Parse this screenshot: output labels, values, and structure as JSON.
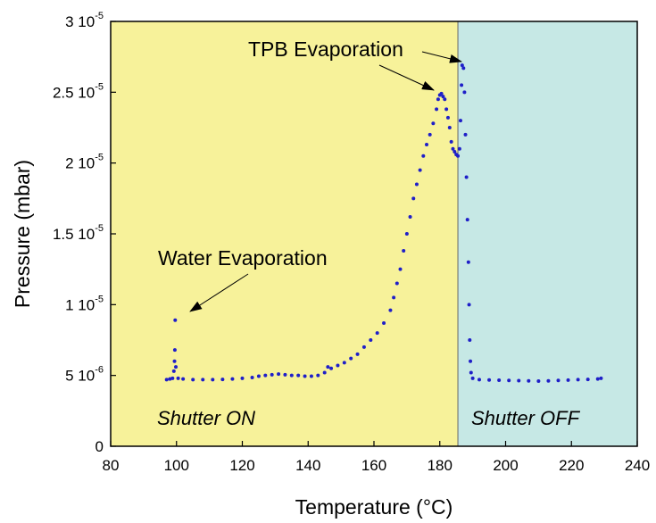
{
  "chart_data": {
    "type": "scatter",
    "xlabel": "Temperature (°C)",
    "ylabel": "Pressure (mbar)",
    "xlim": [
      80,
      240
    ],
    "ylim": [
      0,
      3e-05
    ],
    "x_ticks": [
      80,
      100,
      120,
      140,
      160,
      180,
      200,
      220,
      240
    ],
    "y_ticks": [
      {
        "value": 0,
        "mantissa": "0",
        "exponent": ""
      },
      {
        "value": 5e-06,
        "mantissa": "5 10",
        "exponent": "-6"
      },
      {
        "value": 1e-05,
        "mantissa": "1 10",
        "exponent": "-5"
      },
      {
        "value": 1.5e-05,
        "mantissa": "1.5 10",
        "exponent": "-5"
      },
      {
        "value": 2e-05,
        "mantissa": "2 10",
        "exponent": "-5"
      },
      {
        "value": 2.5e-05,
        "mantissa": "2.5 10",
        "exponent": "-5"
      },
      {
        "value": 3e-05,
        "mantissa": "3 10",
        "exponent": "-5"
      }
    ],
    "grid": false,
    "point_color": "#1f1fc8",
    "regions": [
      {
        "label": "Shutter ON",
        "x_range": [
          80,
          185.5
        ],
        "color": "#f7f29a"
      },
      {
        "label": "Shutter OFF",
        "x_range": [
          185.5,
          240
        ],
        "color": "#c6e8e5"
      }
    ],
    "annotations": [
      {
        "text": "Water Evaporation",
        "arrow_to": [
          99.5,
          8.9e-06
        ]
      },
      {
        "text": "TPB Evaporation",
        "arrow_to": [
          [
            180.2,
            2.47e-05
          ],
          [
            186.8,
            2.69e-05
          ]
        ]
      }
    ],
    "series": [
      {
        "points": [
          [
            97,
            4.7e-06
          ],
          [
            98,
            4.75e-06
          ],
          [
            98.8,
            4.8e-06
          ],
          [
            99.2,
            5.3e-06
          ],
          [
            99.4,
            6e-06
          ],
          [
            99.5,
            6.8e-06
          ],
          [
            99.6,
            8.9e-06
          ],
          [
            99.8,
            5.6e-06
          ],
          [
            100.5,
            4.8e-06
          ],
          [
            102,
            4.75e-06
          ],
          [
            105,
            4.7e-06
          ],
          [
            108,
            4.7e-06
          ],
          [
            111,
            4.7e-06
          ],
          [
            114,
            4.72e-06
          ],
          [
            117,
            4.75e-06
          ],
          [
            120,
            4.8e-06
          ],
          [
            123,
            4.85e-06
          ],
          [
            125,
            4.95e-06
          ],
          [
            127,
            5e-06
          ],
          [
            129,
            5.05e-06
          ],
          [
            131,
            5.1e-06
          ],
          [
            133,
            5.05e-06
          ],
          [
            135,
            5e-06
          ],
          [
            137,
            5e-06
          ],
          [
            139,
            4.95e-06
          ],
          [
            141,
            4.95e-06
          ],
          [
            143,
            5e-06
          ],
          [
            145,
            5.2e-06
          ],
          [
            146,
            5.6e-06
          ],
          [
            147,
            5.5e-06
          ],
          [
            149,
            5.7e-06
          ],
          [
            151,
            5.9e-06
          ],
          [
            153,
            6.2e-06
          ],
          [
            155,
            6.5e-06
          ],
          [
            157,
            7e-06
          ],
          [
            159,
            7.5e-06
          ],
          [
            161,
            8e-06
          ],
          [
            163,
            8.7e-06
          ],
          [
            165,
            9.6e-06
          ],
          [
            166,
            1.05e-05
          ],
          [
            167,
            1.15e-05
          ],
          [
            168,
            1.25e-05
          ],
          [
            169,
            1.38e-05
          ],
          [
            170,
            1.5e-05
          ],
          [
            171,
            1.62e-05
          ],
          [
            172,
            1.75e-05
          ],
          [
            173,
            1.85e-05
          ],
          [
            174,
            1.95e-05
          ],
          [
            175,
            2.05e-05
          ],
          [
            176,
            2.13e-05
          ],
          [
            177,
            2.2e-05
          ],
          [
            178,
            2.28e-05
          ],
          [
            179,
            2.38e-05
          ],
          [
            179.5,
            2.45e-05
          ],
          [
            180,
            2.48e-05
          ],
          [
            180.5,
            2.49e-05
          ],
          [
            181,
            2.47e-05
          ],
          [
            181.5,
            2.45e-05
          ],
          [
            182,
            2.38e-05
          ],
          [
            182.5,
            2.32e-05
          ],
          [
            183,
            2.25e-05
          ],
          [
            183.5,
            2.15e-05
          ],
          [
            184,
            2.1e-05
          ],
          [
            184.5,
            2.08e-05
          ],
          [
            185,
            2.06e-05
          ],
          [
            185.5,
            2.05e-05
          ],
          [
            186,
            2.1e-05
          ],
          [
            186.3,
            2.3e-05
          ],
          [
            186.6,
            2.55e-05
          ],
          [
            186.8,
            2.69e-05
          ],
          [
            187.2,
            2.67e-05
          ],
          [
            187.5,
            2.5e-05
          ],
          [
            187.8,
            2.2e-05
          ],
          [
            188.1,
            1.9e-05
          ],
          [
            188.4,
            1.6e-05
          ],
          [
            188.7,
            1.3e-05
          ],
          [
            188.9,
            1e-05
          ],
          [
            189.1,
            7.5e-06
          ],
          [
            189.3,
            6e-06
          ],
          [
            189.5,
            5.2e-06
          ],
          [
            190,
            4.8e-06
          ],
          [
            192,
            4.7e-06
          ],
          [
            195,
            4.68e-06
          ],
          [
            198,
            4.66e-06
          ],
          [
            201,
            4.65e-06
          ],
          [
            204,
            4.63e-06
          ],
          [
            207,
            4.62e-06
          ],
          [
            210,
            4.6e-06
          ],
          [
            213,
            4.62e-06
          ],
          [
            216,
            4.65e-06
          ],
          [
            219,
            4.67e-06
          ],
          [
            222,
            4.7e-06
          ],
          [
            225,
            4.72e-06
          ],
          [
            228,
            4.75e-06
          ],
          [
            229,
            4.8e-06
          ]
        ]
      }
    ]
  }
}
